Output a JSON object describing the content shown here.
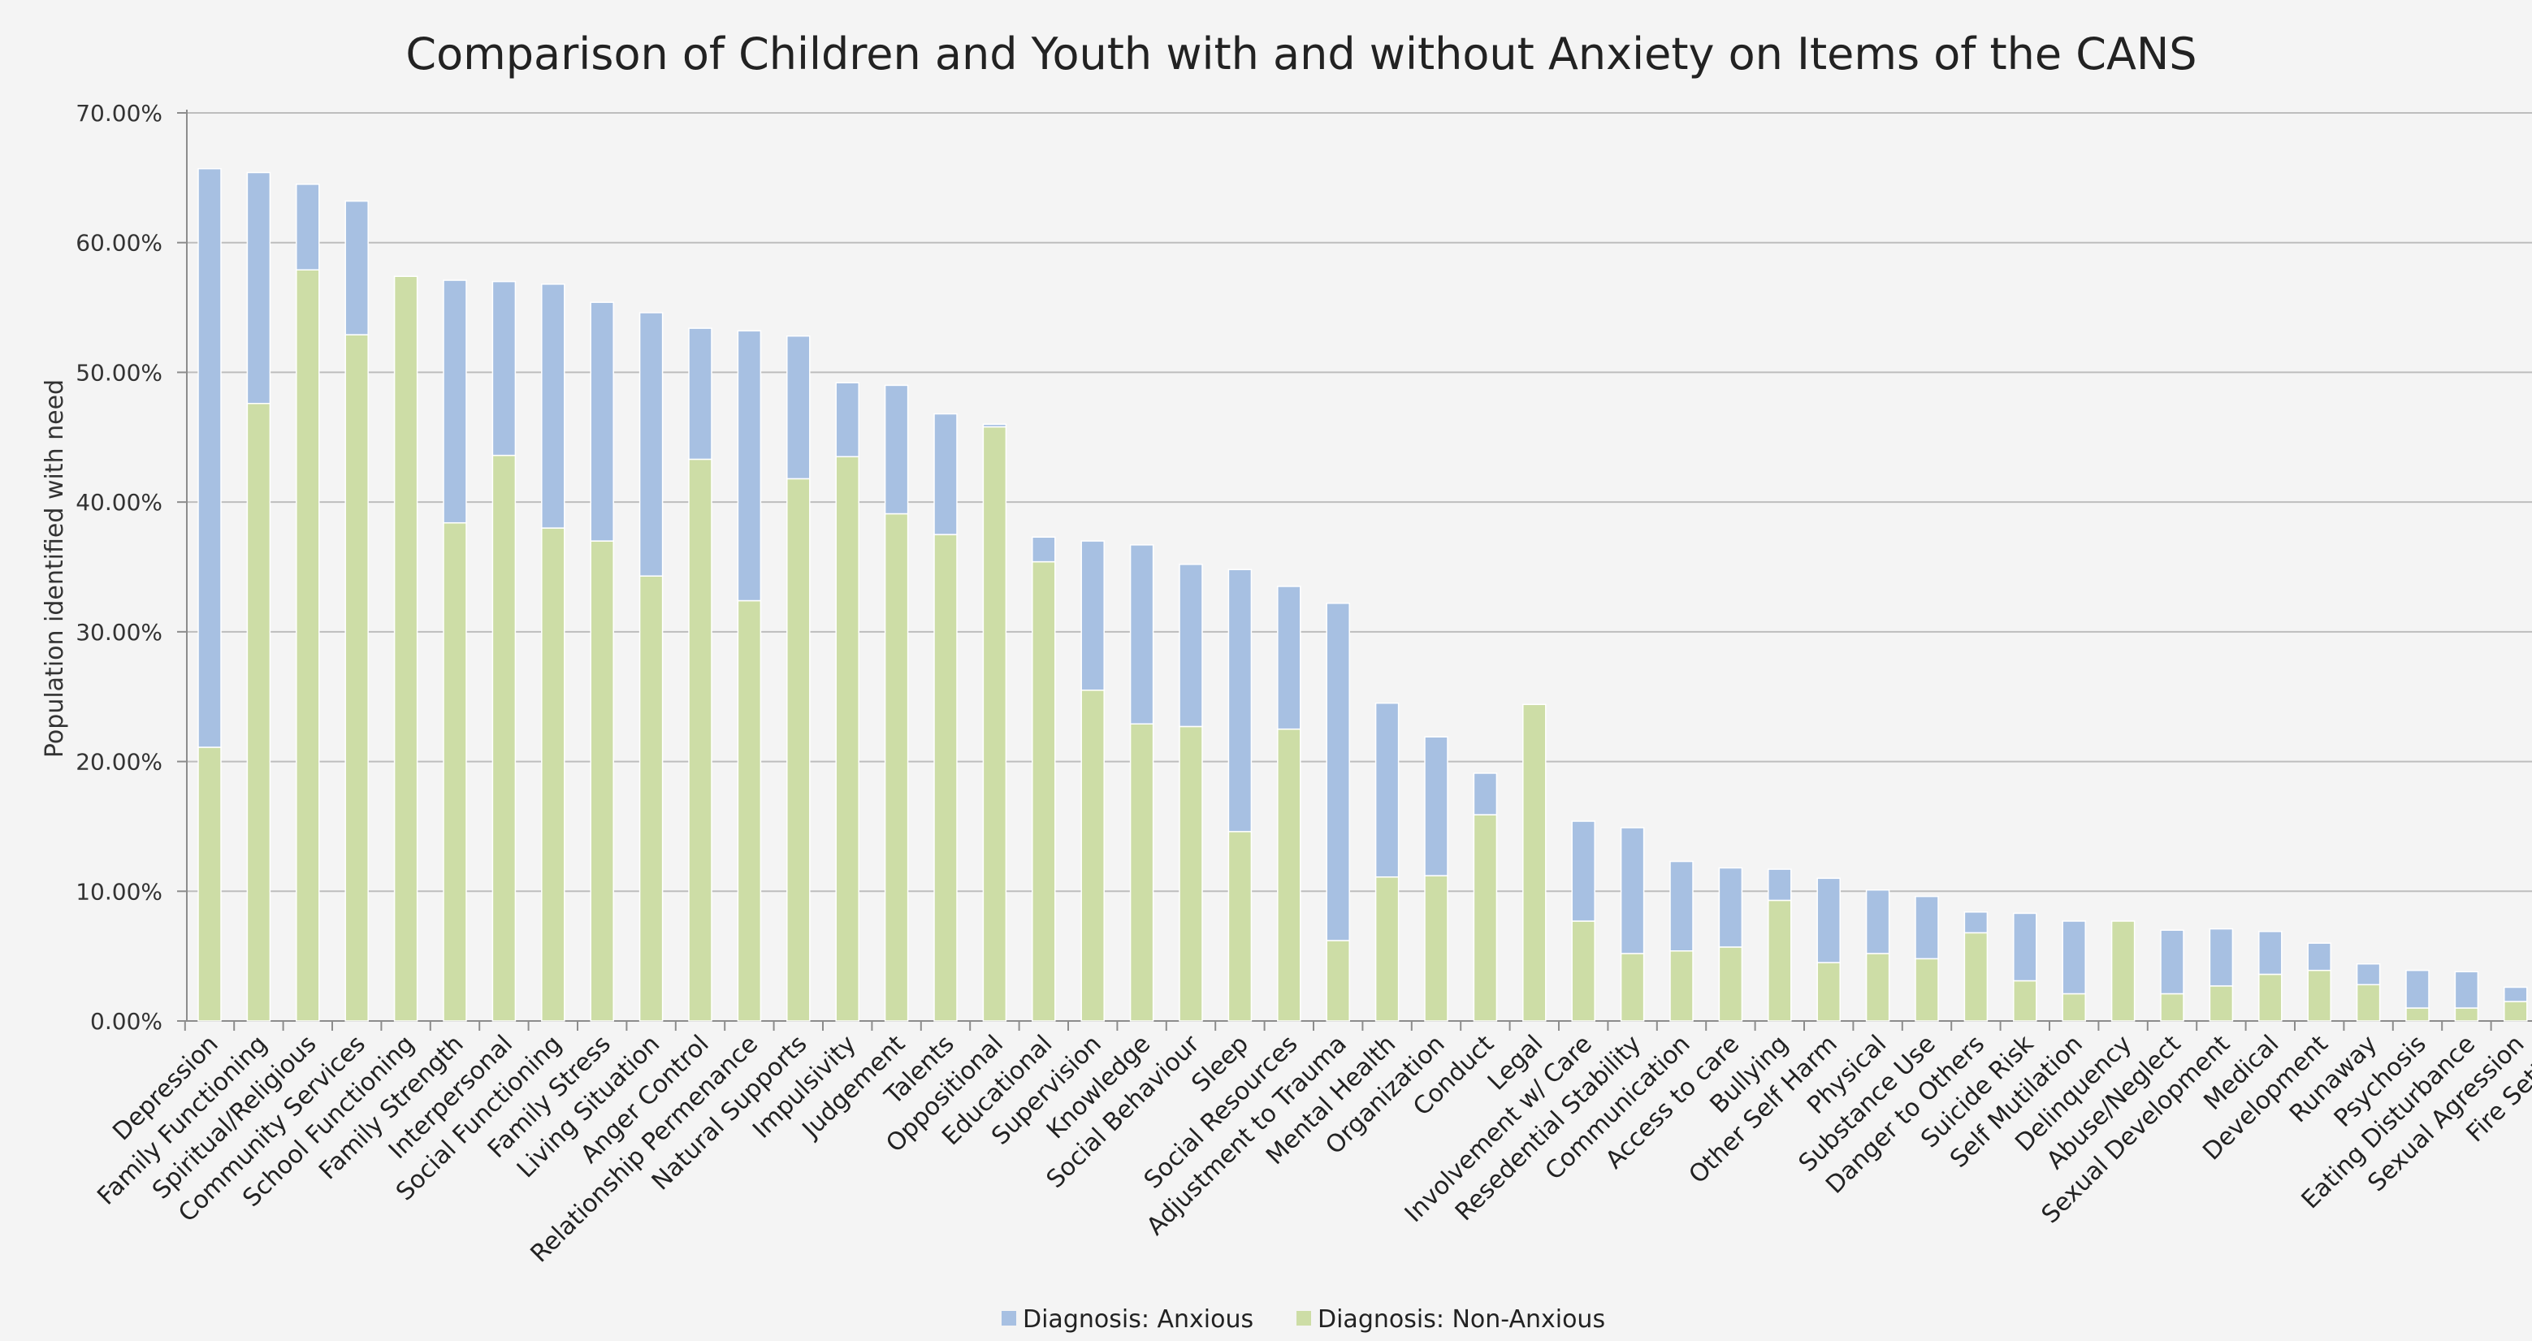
{
  "chart_data": {
    "type": "bar",
    "stacked": true,
    "title": "Comparison of Children and Youth with and without Anxiety on Items of the CANS",
    "xlabel": "",
    "ylabel": "Population identified with need",
    "ylim": [
      0,
      70
    ],
    "y_tick_step": 10,
    "y_tick_labels": [
      "0.00%",
      "10.00%",
      "20.00%",
      "30.00%",
      "40.00%",
      "50.00%",
      "60.00%",
      "70.00%"
    ],
    "grid": true,
    "legend_position": "bottom",
    "categories": [
      "Depression",
      "Family Functioning",
      "Spiritual/Religious",
      "Community Services",
      "School Functioning",
      "Family Strength",
      "Interpersonal",
      "Social Functioning",
      "Family Stress",
      "Living Situation",
      "Anger Control",
      "Relationship Permenance",
      "Natural Supports",
      "Impulsivity",
      "Judgement",
      "Talents",
      "Oppositional",
      "Educational",
      "Supervision",
      "Knowledge",
      "Social Behaviour",
      "Sleep",
      "Social Resources",
      "Adjustment to Trauma",
      "Mental Health",
      "Organization",
      "Conduct",
      "Legal",
      "Involvement w/ Care",
      "Resedential Stability",
      "Communication",
      "Access to care",
      "Bullying",
      "Other Self Harm",
      "Physical",
      "Substance Use",
      "Danger to Others",
      "Suicide Risk",
      "Self Mutilation",
      "Delinquency",
      "Abuse/Neglect",
      "Sexual Development",
      "Medical",
      "Development",
      "Runaway",
      "Psychosis",
      "Eating Disturbance",
      "Sexual Agression",
      "Fire Setting"
    ],
    "series": [
      {
        "name": "Diagnosis: Non-Anxious",
        "color": "#cddda6",
        "values": [
          21.1,
          47.6,
          57.9,
          52.9,
          57.4,
          38.4,
          43.6,
          38.0,
          37.0,
          34.3,
          43.3,
          32.4,
          41.8,
          43.5,
          39.1,
          37.5,
          45.8,
          35.4,
          25.5,
          22.9,
          22.7,
          14.6,
          22.5,
          6.2,
          11.1,
          11.2,
          15.9,
          24.4,
          7.7,
          5.2,
          5.4,
          5.7,
          9.3,
          4.5,
          5.2,
          4.8,
          6.8,
          3.1,
          2.1,
          7.7,
          2.1,
          2.7,
          3.6,
          3.9,
          2.8,
          1.0,
          1.0,
          1.5,
          0.3
        ]
      },
      {
        "name": "Diagnosis: Anxious",
        "color": "#a7c0e2",
        "values": [
          44.6,
          17.8,
          6.6,
          10.3,
          0.0,
          18.7,
          13.4,
          18.8,
          18.4,
          20.3,
          10.1,
          20.8,
          11.0,
          5.7,
          9.9,
          9.3,
          0.2,
          1.9,
          11.5,
          13.8,
          12.5,
          20.2,
          11.0,
          26.0,
          13.4,
          10.7,
          3.2,
          0.0,
          7.7,
          9.7,
          6.9,
          6.1,
          2.4,
          6.5,
          4.9,
          4.8,
          1.6,
          5.2,
          5.6,
          0.0,
          4.9,
          4.4,
          3.3,
          2.1,
          1.6,
          2.9,
          2.8,
          1.1,
          0.1
        ]
      }
    ]
  }
}
